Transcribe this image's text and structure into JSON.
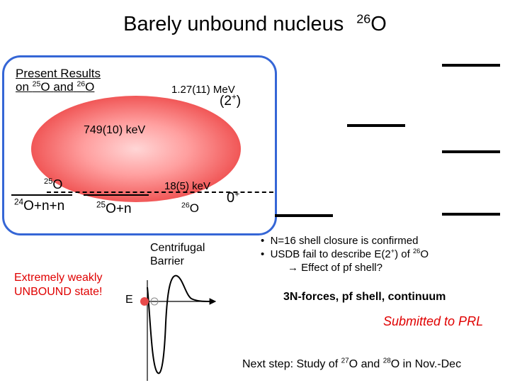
{
  "title": {
    "text": "Barely unbound nucleus",
    "nucleus_mass": "26",
    "nucleus_symbol": "O"
  },
  "panel": {
    "heading_line1": "Present Results",
    "heading_on": "on",
    "o25_mass": "25",
    "o25_symbol": "O",
    "and_text": "and",
    "o26_mass": "26",
    "o26_symbol": "O",
    "state_energy_2plus": "1.27(11) MeV",
    "state_label_2plus": "(2",
    "state_label_2plus_sup": "+",
    "state_label_2plus_close": ")",
    "o25_state_energy": "749(10) keV",
    "o25_label_mass": "25",
    "o25_label_symbol": "O",
    "o24_mass": "24",
    "o24_rest": "O+n+n",
    "o25n_mass": "25",
    "o25n_rest": "O+n",
    "ground_energy": "18(5) keV",
    "o26_label_mass": "26",
    "o26_label_symbol": "O",
    "ground_label": "0",
    "ground_label_sup": "+"
  },
  "barrier": {
    "label_line1": "Centrifugal",
    "label_line2": "Barrier",
    "e_label": "E"
  },
  "weakly": {
    "line1": "Extremely weakly",
    "line2": "UNBOUND state!"
  },
  "bullets": {
    "b1": "N=16 shell closure is confirmed",
    "b2_pre": "USDB fail to describe E(2",
    "b2_sup": "+",
    "b2_mid": ") of",
    "b2_mass": "26",
    "b2_symbol": "O",
    "b3": "Effect of pf shell?"
  },
  "forces": "3N-forces, pf shell, continuum",
  "submitted": "Submitted to PRL",
  "next_step": {
    "pre": "Next step: Study of",
    "m27": "27",
    "s27": "O",
    "and": "and",
    "m28": "28",
    "s28": "O",
    "post": "in Nov.-Dec"
  },
  "colors": {
    "panel_border": "#3566d6",
    "blob": "#e84a4a",
    "accent_red": "#e00000",
    "bullet_symbol": "#000000"
  }
}
